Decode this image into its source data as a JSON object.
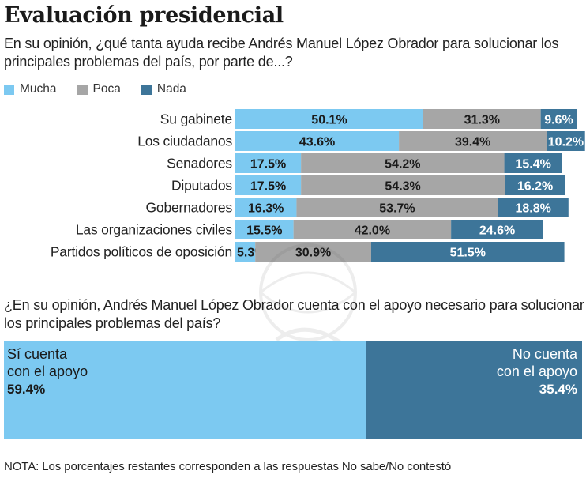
{
  "title": "Evaluación presidencial",
  "chart_data": [
    {
      "type": "bar",
      "orientation": "horizontal-stacked",
      "title": "Evaluación presidencial",
      "subtitle": "En su opinión, ¿qué tanta ayuda recibe Andrés Manuel López Obrador para solucionar los principales problemas del país, por parte de...?",
      "categories": [
        "Su gabinete",
        "Los ciudadanos",
        "Senadores",
        "Diputados",
        "Gobernadores",
        "Las organizaciones civiles",
        "Partidos políticos de oposición"
      ],
      "series": [
        {
          "name": "Mucha",
          "color": "#7cc9f1",
          "values": [
            50.1,
            43.6,
            17.5,
            17.5,
            16.3,
            15.5,
            5.3
          ]
        },
        {
          "name": "Poca",
          "color": "#a6a6a6",
          "values": [
            31.3,
            39.4,
            54.2,
            54.3,
            53.7,
            42.0,
            30.9
          ]
        },
        {
          "name": "Nada",
          "color": "#3d7599",
          "values": [
            9.6,
            10.2,
            15.4,
            16.2,
            18.8,
            24.6,
            51.5
          ]
        }
      ],
      "value_suffix": "%",
      "legend": "top-left",
      "grid": false,
      "xlabel": "",
      "ylabel": ""
    },
    {
      "type": "bar",
      "orientation": "horizontal-stacked",
      "title": "¿En su opinión, Andrés Manuel López Obrador cuenta con el apoyo necesario para solucionar los principales problemas del país?",
      "categories": [
        "Sí cuenta con el apoyo",
        "No cuenta con el apoyo"
      ],
      "values": [
        59.4,
        35.4
      ],
      "colors": [
        "#7cc9f1",
        "#3d7599"
      ]
    }
  ],
  "legend": [
    {
      "label": "Mucha",
      "color": "#7cc9f1"
    },
    {
      "label": "Poca",
      "color": "#a6a6a6"
    },
    {
      "label": "Nada",
      "color": "#3d7599"
    }
  ],
  "question1": "En su opinión, ¿qué tanta ayuda recibe Andrés Manuel López Obrador para solucionar los principales problemas del país, por parte de...?",
  "question2": "¿En su opinión, Andrés Manuel López Obrador cuenta con el apoyo necesario para solucionar los principales problemas del país?",
  "support": {
    "yes_line1": "Sí cuenta",
    "yes_line2": "con el apoyo",
    "yes_value": "59.4%",
    "no_line1": "No cuenta",
    "no_line2": "con el apoyo",
    "no_value": "35.4%"
  },
  "note": "NOTA: Los porcentajes restantes corresponden a las respuestas No sabe/No contestó"
}
